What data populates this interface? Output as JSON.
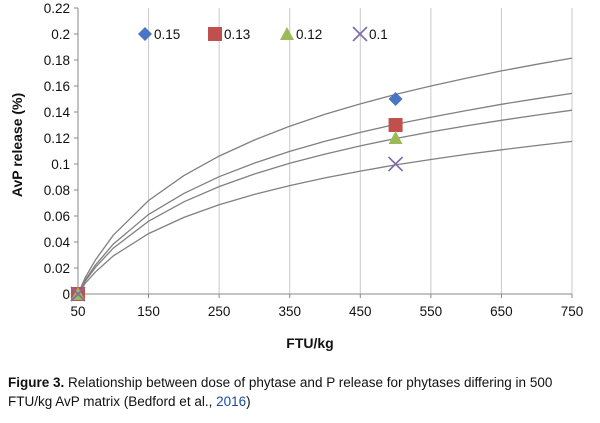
{
  "chart_data": {
    "type": "scatter",
    "xlabel": "FTU/kg",
    "ylabel": "AvP release (%)",
    "xlim": [
      50,
      750
    ],
    "ylim": [
      0,
      0.22
    ],
    "x_ticks": [
      50,
      150,
      250,
      350,
      450,
      550,
      650,
      750
    ],
    "y_ticks": [
      0,
      0.02,
      0.04,
      0.06,
      0.08,
      0.1,
      0.12,
      0.14,
      0.16,
      0.18,
      0.2,
      0.22
    ],
    "x_tick_labels": [
      "50",
      "150",
      "250",
      "350",
      "450",
      "550",
      "650",
      "750"
    ],
    "y_tick_labels": [
      "0",
      "0.02",
      "0.04",
      "0.06",
      "0.08",
      "0.1",
      "0.12",
      "0.14",
      "0.16",
      "0.18",
      "0.2",
      "0.22"
    ],
    "grid": "vertical",
    "legend_position": "top-left",
    "series": [
      {
        "name": "0.15",
        "marker": "diamond",
        "color": "#4a74c4",
        "points": [
          [
            50,
            0
          ],
          [
            500,
            0.15
          ]
        ]
      },
      {
        "name": "0.13",
        "marker": "square",
        "color": "#c0504d",
        "points": [
          [
            50,
            0
          ],
          [
            500,
            0.13
          ]
        ]
      },
      {
        "name": "0.12",
        "marker": "triangle",
        "color": "#9bbb59",
        "points": [
          [
            50,
            0
          ],
          [
            500,
            0.12
          ]
        ]
      },
      {
        "name": "0.1",
        "marker": "x",
        "color": "#7e6ba8",
        "points": [
          [
            50,
            0
          ],
          [
            500,
            0.1
          ]
        ]
      }
    ],
    "curves": [
      {
        "series": "0.15",
        "x": [
          50,
          60,
          75,
          100,
          150,
          200,
          250,
          300,
          350,
          400,
          450,
          500,
          550,
          600,
          650,
          700,
          750
        ],
        "y": [
          0,
          0.0125,
          0.0264,
          0.0452,
          0.0719,
          0.0911,
          0.1061,
          0.1185,
          0.1291,
          0.1382,
          0.1462,
          0.1535,
          0.16,
          0.166,
          0.1716,
          0.1767,
          0.1815
        ]
      },
      {
        "series": "0.13",
        "x": [
          50,
          60,
          75,
          100,
          150,
          200,
          250,
          300,
          350,
          400,
          450,
          500,
          550,
          600,
          650,
          700,
          750
        ],
        "y": [
          0,
          0.0106,
          0.0225,
          0.0384,
          0.0612,
          0.0774,
          0.0902,
          0.1007,
          0.1097,
          0.1175,
          0.1243,
          0.1305,
          0.136,
          0.1411,
          0.1459,
          0.1502,
          0.1543
        ]
      },
      {
        "series": "0.12",
        "x": [
          50,
          60,
          75,
          100,
          150,
          200,
          250,
          300,
          350,
          400,
          450,
          500,
          550,
          600,
          650,
          700,
          750
        ],
        "y": [
          0,
          0.0098,
          0.0206,
          0.0353,
          0.056,
          0.0709,
          0.0826,
          0.0923,
          0.1005,
          0.1076,
          0.1139,
          0.1196,
          0.1247,
          0.1293,
          0.1336,
          0.1376,
          0.1414
        ]
      },
      {
        "series": "0.1",
        "x": [
          50,
          60,
          75,
          100,
          150,
          200,
          250,
          300,
          350,
          400,
          450,
          500,
          550,
          600,
          650,
          700,
          750
        ],
        "y": [
          0,
          0.0081,
          0.0171,
          0.0293,
          0.0465,
          0.0589,
          0.0686,
          0.0766,
          0.0834,
          0.0893,
          0.0945,
          0.0993,
          0.1035,
          0.1074,
          0.1109,
          0.1142,
          0.1174
        ]
      }
    ]
  },
  "caption": {
    "figure_label": "Figure 3.",
    "text": " Relationship between dose of phytase and P release for phytases differing in 500 FTU/kg AvP matrix (Bedford et al., ",
    "year": "2016",
    "closing": ")"
  },
  "colors": {
    "axis": "#888888",
    "grid": "#c8c8c8",
    "curve": "#808080"
  }
}
